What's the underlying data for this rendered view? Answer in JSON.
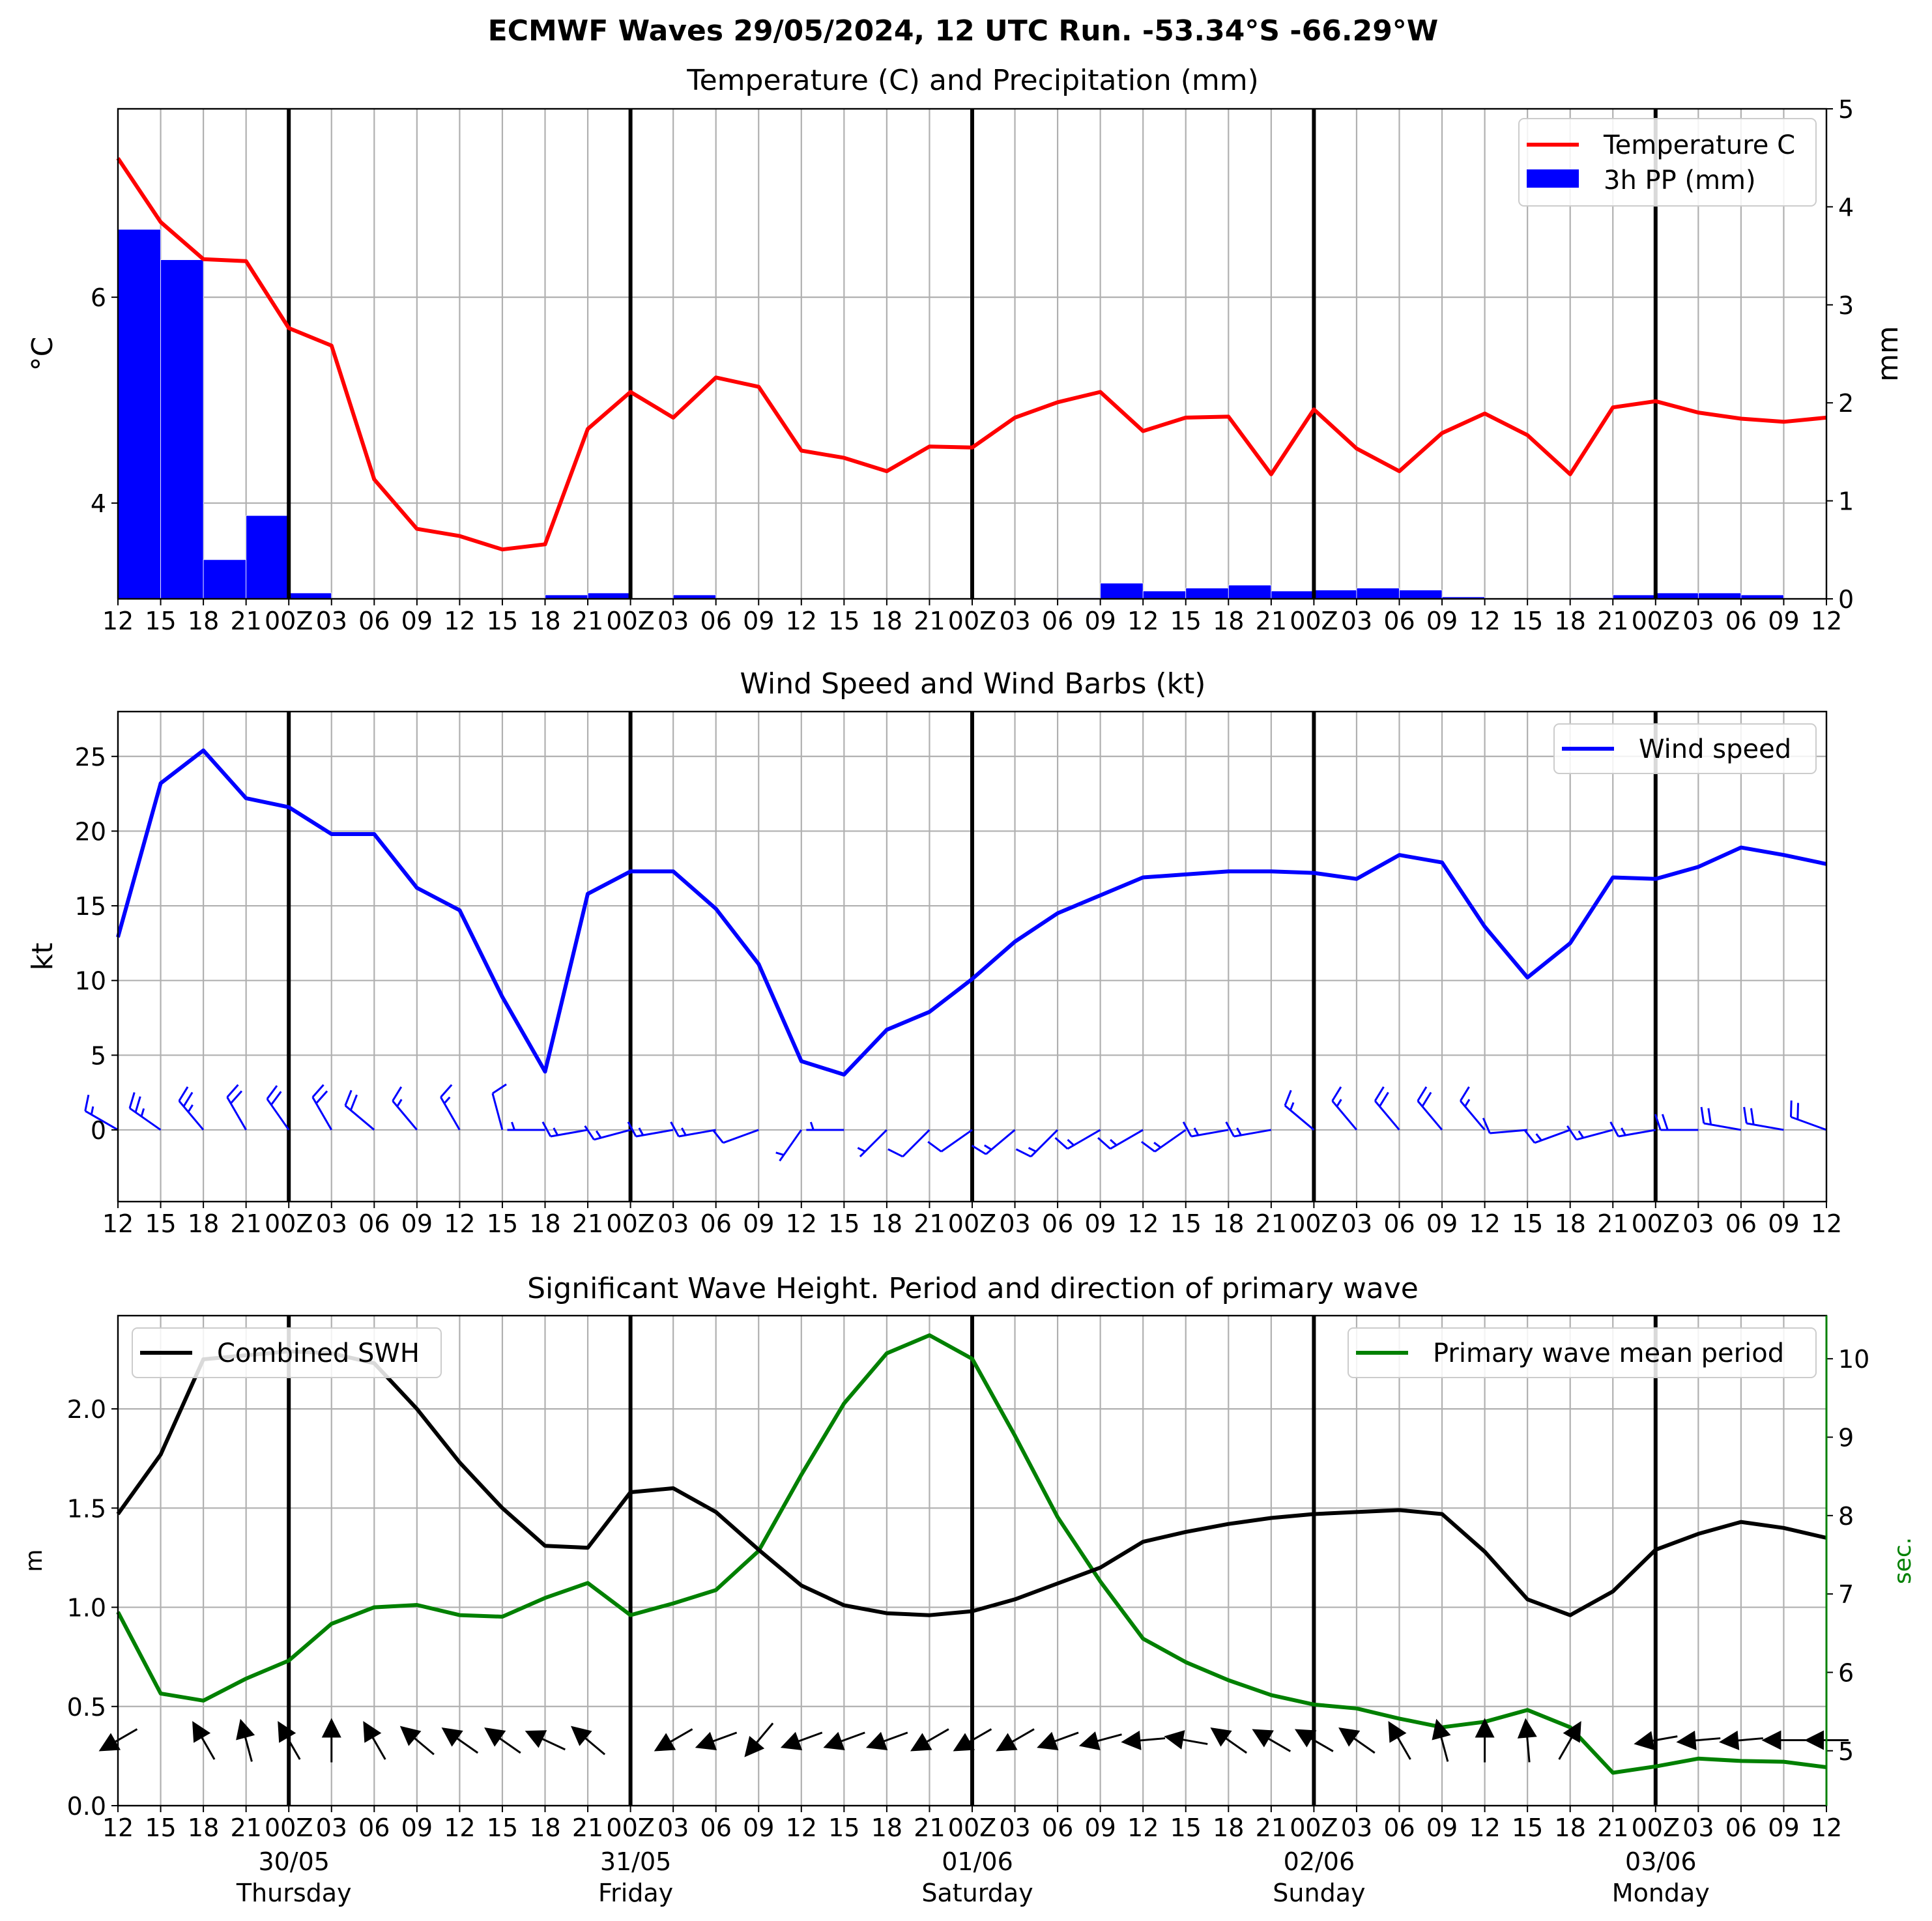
{
  "suptitle": "ECMWF Waves 29/05/2024, 12 UTC Run. -53.34°S -66.29°W",
  "colors": {
    "temperature": "#ff0000",
    "precipitation": "#0000ff",
    "wind": "#0000ff",
    "swh": "#000000",
    "period": "#008000",
    "grid": "#b0b0b0",
    "day_line": "#000000"
  },
  "x_tick_labels": [
    "12",
    "15",
    "18",
    "21",
    "00Z",
    "03",
    "06",
    "09",
    "12",
    "15",
    "18",
    "21",
    "00Z",
    "03",
    "06",
    "09",
    "12",
    "15",
    "18",
    "21",
    "00Z",
    "03",
    "06",
    "09",
    "12",
    "15",
    "18",
    "21",
    "00Z",
    "03",
    "06",
    "09",
    "12",
    "15",
    "18",
    "21",
    "00Z",
    "03",
    "06",
    "09",
    "12"
  ],
  "day_markers": [
    {
      "index": 4,
      "date": "30/05",
      "day": "Thursday"
    },
    {
      "index": 12,
      "date": "31/05",
      "day": "Friday"
    },
    {
      "index": 20,
      "date": "01/06",
      "day": "Saturday"
    },
    {
      "index": 28,
      "date": "02/06",
      "day": "Sunday"
    },
    {
      "index": 36,
      "date": "03/06",
      "day": "Monday"
    }
  ],
  "chart_data": [
    {
      "type": "line",
      "title": "Temperature (C) and Precipitation (mm)",
      "ylabel": "°C",
      "ylabel_right": "mm",
      "ylim": [
        3.07,
        7.83
      ],
      "ylim_right": [
        0,
        5
      ],
      "yticks": [
        4,
        6
      ],
      "yticks_right": [
        0,
        1,
        2,
        3,
        4,
        5
      ],
      "grid": true,
      "legend_position": "top-right",
      "series": [
        {
          "name": "Temperature C",
          "type": "line",
          "axis": "left",
          "values": [
            7.35,
            6.73,
            6.37,
            6.35,
            5.7,
            5.53,
            4.23,
            3.75,
            3.68,
            3.55,
            3.6,
            4.72,
            5.08,
            4.83,
            5.22,
            5.13,
            4.51,
            4.44,
            4.31,
            4.55,
            4.54,
            4.83,
            4.98,
            5.08,
            4.7,
            4.83,
            4.84,
            4.28,
            4.91,
            4.53,
            4.31,
            4.68,
            4.87,
            4.66,
            4.28,
            4.93,
            4.99,
            4.88,
            4.82,
            4.79,
            4.83
          ]
        },
        {
          "name": "3h PP (mm)",
          "type": "bar",
          "axis": "right",
          "values": [
            3.77,
            3.46,
            0.4,
            0.85,
            0.06,
            0,
            0,
            0,
            0,
            0,
            0.04,
            0.06,
            0,
            0.04,
            0,
            0,
            0,
            0,
            0,
            0,
            0,
            0,
            0.01,
            0.16,
            0.08,
            0.11,
            0.14,
            0.08,
            0.09,
            0.11,
            0.09,
            0.02,
            0,
            0,
            0.01,
            0.04,
            0.06,
            0.06,
            0.04,
            0
          ]
        }
      ]
    },
    {
      "type": "line",
      "title": "Wind Speed and Wind Barbs (kt)",
      "ylabel": "kt",
      "ylim": [
        -4.8,
        28
      ],
      "yticks": [
        0,
        5,
        10,
        15,
        20,
        25
      ],
      "grid": true,
      "legend_position": "top-right",
      "series": [
        {
          "name": "Wind speed",
          "type": "line",
          "values": [
            12.9,
            23.2,
            25.4,
            22.2,
            21.6,
            19.8,
            19.8,
            16.2,
            14.7,
            8.9,
            3.9,
            15.8,
            17.3,
            17.3,
            14.8,
            11.1,
            4.6,
            3.7,
            6.7,
            7.9,
            10.1,
            12.6,
            14.5,
            15.7,
            16.9,
            17.1,
            17.3,
            17.3,
            17.2,
            16.8,
            18.4,
            17.9,
            13.6,
            10.2,
            12.5,
            16.9,
            16.8,
            17.6,
            18.9,
            18.4,
            17.8
          ]
        },
        {
          "name": "Wind barb direction (deg)",
          "type": "barbs",
          "values": [
            300,
            305,
            320,
            330,
            325,
            330,
            310,
            320,
            330,
            345,
            270,
            260,
            255,
            260,
            260,
            250,
            215,
            270,
            225,
            225,
            235,
            230,
            225,
            240,
            240,
            235,
            260,
            260,
            310,
            320,
            320,
            320,
            320,
            265,
            250,
            255,
            260,
            270,
            280,
            280,
            290
          ]
        }
      ]
    },
    {
      "type": "line",
      "title": "Significant Wave Height. Period and direction of primary wave",
      "ylabel": "m",
      "ylabel_right": "sec.",
      "ylim": [
        0,
        2.47
      ],
      "ylim_right": [
        4.3,
        10.55
      ],
      "yticks": [
        0.0,
        0.5,
        1.0,
        1.5,
        2.0
      ],
      "yticks_right": [
        5,
        6,
        7,
        8,
        9,
        10
      ],
      "grid": true,
      "legend_position": "top-left / top-right",
      "series": [
        {
          "name": "Combined SWH",
          "type": "line",
          "axis": "left",
          "values": [
            1.47,
            1.77,
            2.25,
            2.27,
            2.29,
            2.28,
            2.23,
            2.0,
            1.73,
            1.5,
            1.31,
            1.3,
            1.58,
            1.6,
            1.48,
            1.29,
            1.11,
            1.01,
            0.97,
            0.96,
            0.98,
            1.04,
            1.12,
            1.2,
            1.33,
            1.38,
            1.42,
            1.45,
            1.47,
            1.48,
            1.49,
            1.47,
            1.28,
            1.04,
            0.96,
            1.08,
            1.29,
            1.37,
            1.43,
            1.4,
            1.35
          ]
        },
        {
          "name": "Primary wave mean period",
          "type": "line",
          "axis": "right",
          "values": [
            6.77,
            5.73,
            5.64,
            5.92,
            6.15,
            6.62,
            6.83,
            6.86,
            6.73,
            6.71,
            6.95,
            7.14,
            6.73,
            6.88,
            7.05,
            7.55,
            8.52,
            9.43,
            10.07,
            10.3,
            10.0,
            9.02,
            7.98,
            7.16,
            6.43,
            6.13,
            5.9,
            5.71,
            5.59,
            5.54,
            5.41,
            5.3,
            5.37,
            5.52,
            5.3,
            4.72,
            4.8,
            4.9,
            4.87,
            4.86,
            4.79
          ]
        },
        {
          "name": "Primary wave direction (deg)",
          "type": "arrows",
          "values": [
            240,
            null,
            330,
            345,
            330,
            0,
            330,
            310,
            305,
            305,
            295,
            310,
            null,
            240,
            250,
            220,
            250,
            250,
            250,
            240,
            240,
            240,
            250,
            255,
            265,
            280,
            305,
            300,
            300,
            305,
            330,
            345,
            0,
            355,
            30,
            null,
            260,
            265,
            265,
            270,
            270
          ]
        }
      ]
    }
  ]
}
